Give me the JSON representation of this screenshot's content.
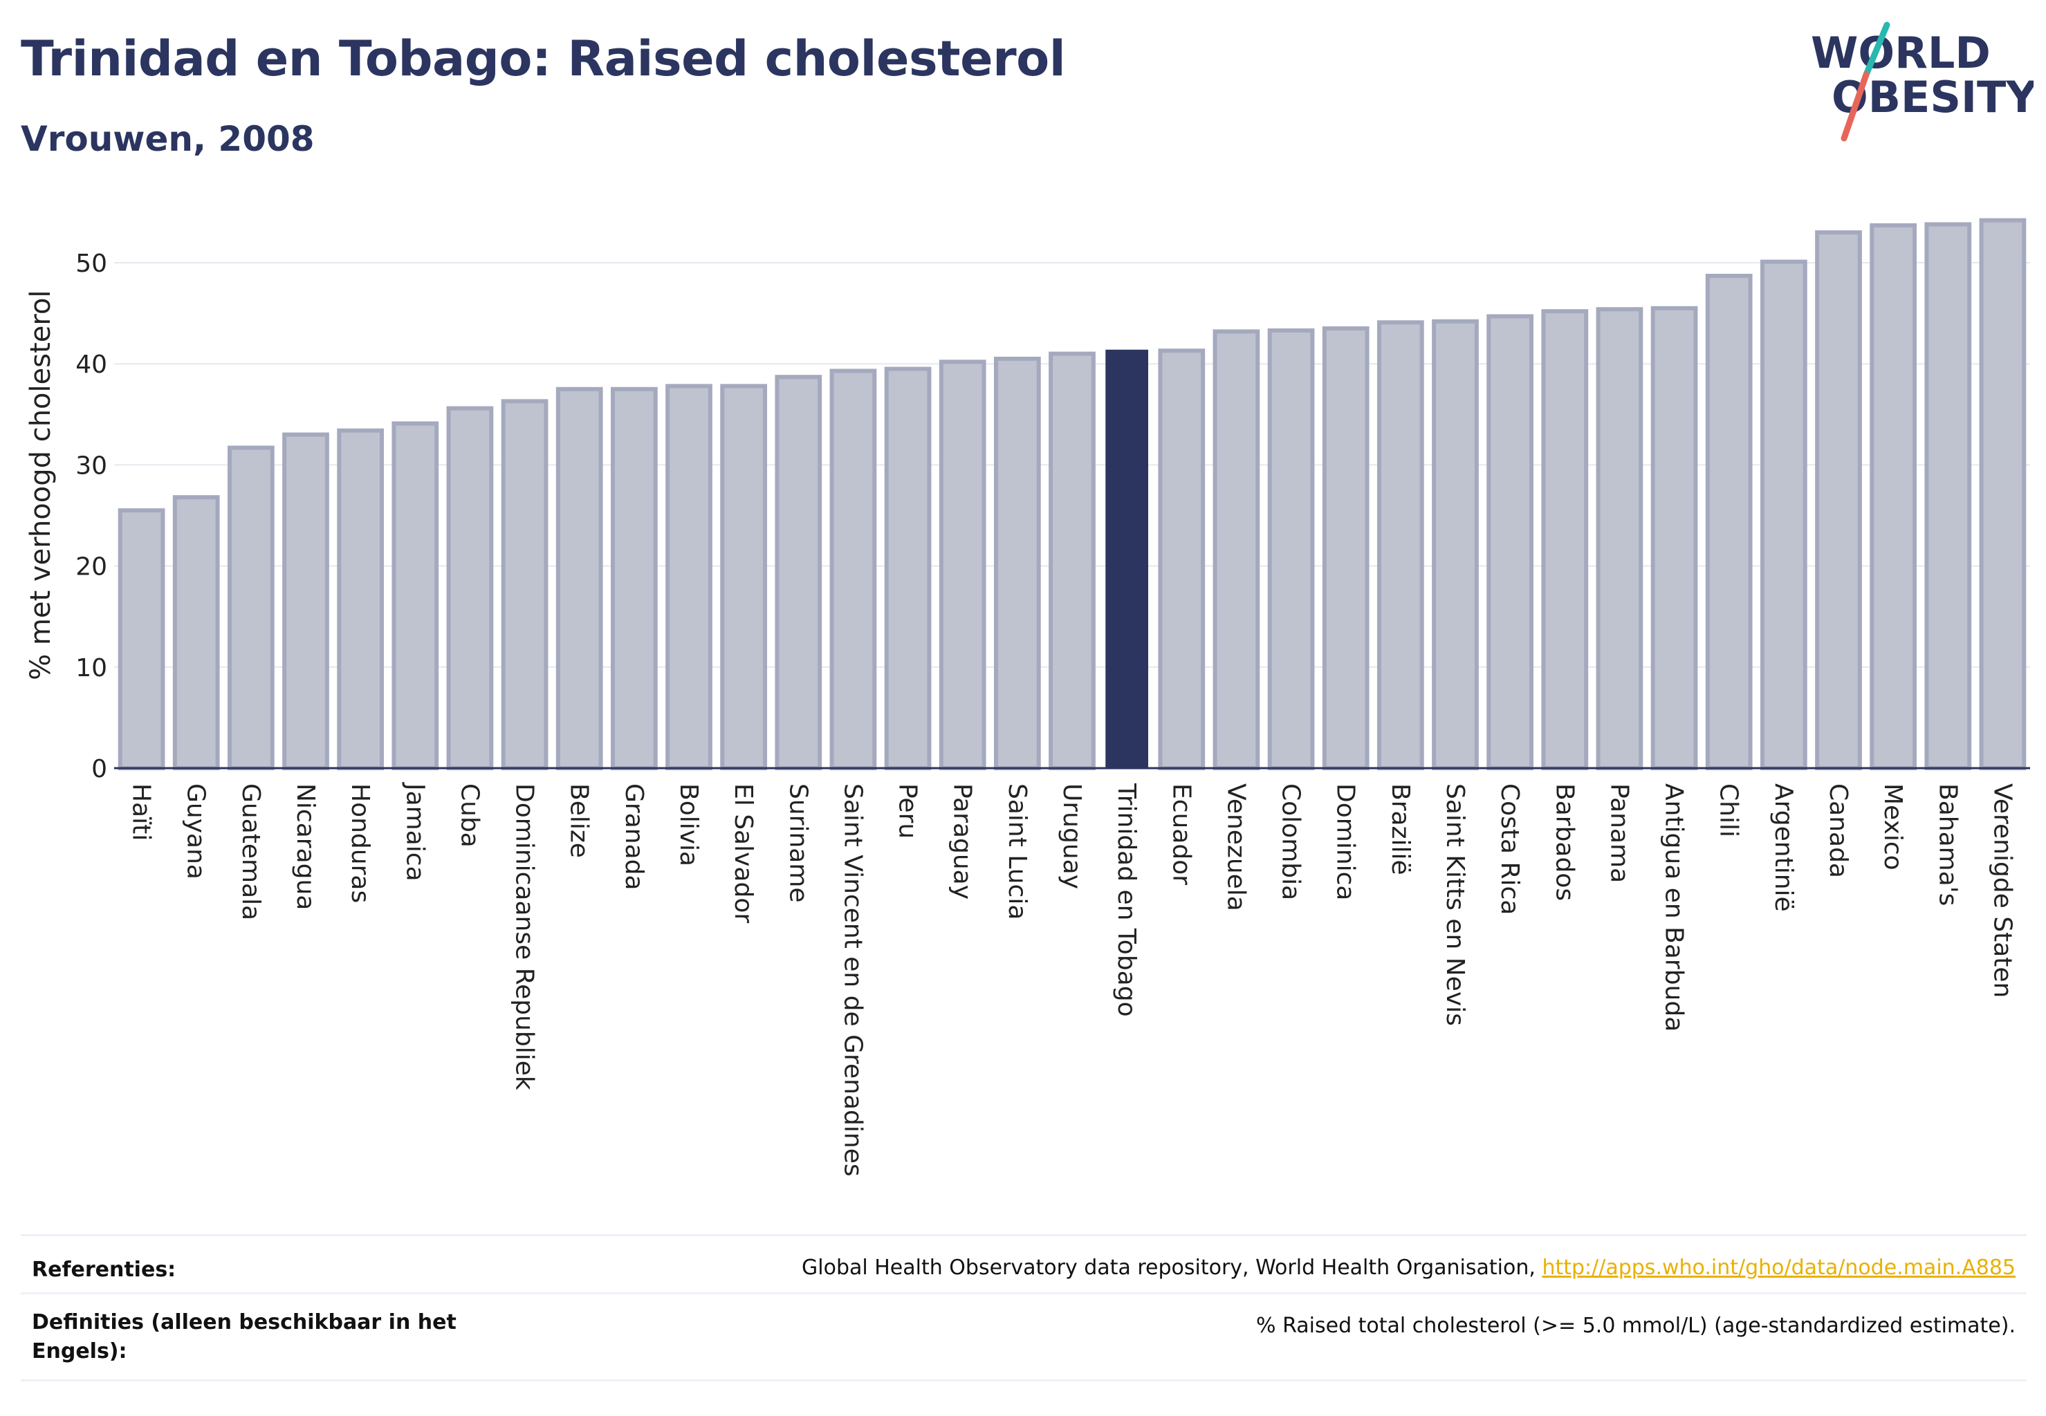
{
  "header": {
    "title": "Trinidad en Tobago: Raised cholesterol",
    "subtitle": "Vrouwen, 2008"
  },
  "logo": {
    "line1": "WORLD",
    "line2": "OBESITY",
    "accent_colors": [
      "#2ab7b0",
      "#e8655a"
    ]
  },
  "chart_data": {
    "type": "bar",
    "ylabel": "% met verhoogd cholesterol",
    "ylim": [
      0,
      56
    ],
    "yticks": [
      0,
      10,
      20,
      30,
      40,
      50
    ],
    "grid": true,
    "highlight": "Trinidad en Tobago",
    "colors": {
      "bar": "#bfc2cf",
      "bar_edge": "#a4a9be",
      "highlight": "#2b3560"
    },
    "categories": [
      "Haïti",
      "Guyana",
      "Guatemala",
      "Nicaragua",
      "Honduras",
      "Jamaica",
      "Cuba",
      "Dominicaanse Republiek",
      "Belize",
      "Granada",
      "Bolivia",
      "El Salvador",
      "Suriname",
      "Saint Vincent en de Grenadines",
      "Peru",
      "Paraguay",
      "Saint Lucia",
      "Uruguay",
      "Trinidad en Tobago",
      "Ecuador",
      "Venezuela",
      "Colombia",
      "Dominica",
      "Brazilië",
      "Saint Kitts en Nevis",
      "Costa Rica",
      "Barbados",
      "Panama",
      "Antigua en Barbuda",
      "Chili",
      "Argentinië",
      "Canada",
      "Mexico",
      "Bahama's",
      "Verenigde Staten"
    ],
    "values": [
      25.5,
      26.8,
      31.7,
      33.0,
      33.4,
      34.1,
      35.6,
      36.3,
      37.5,
      37.5,
      37.8,
      37.8,
      38.7,
      39.3,
      39.5,
      40.2,
      40.5,
      41.0,
      41.4,
      41.3,
      43.2,
      43.3,
      43.5,
      44.1,
      44.2,
      44.7,
      45.2,
      45.4,
      45.5,
      48.7,
      50.1,
      53.0,
      53.7,
      53.8,
      54.2
    ]
  },
  "footer": {
    "references_label": "Referenties:",
    "references_text": "Global Health Observatory data repository, World Health Organisation, ",
    "references_link": "http://apps.who.int/gho/data/node.main.A885",
    "definitions_label": "Definities (alleen beschikbaar in het Engels):",
    "definitions_text": "% Raised total cholesterol (>= 5.0 mmol/L) (age-standardized estimate)."
  }
}
